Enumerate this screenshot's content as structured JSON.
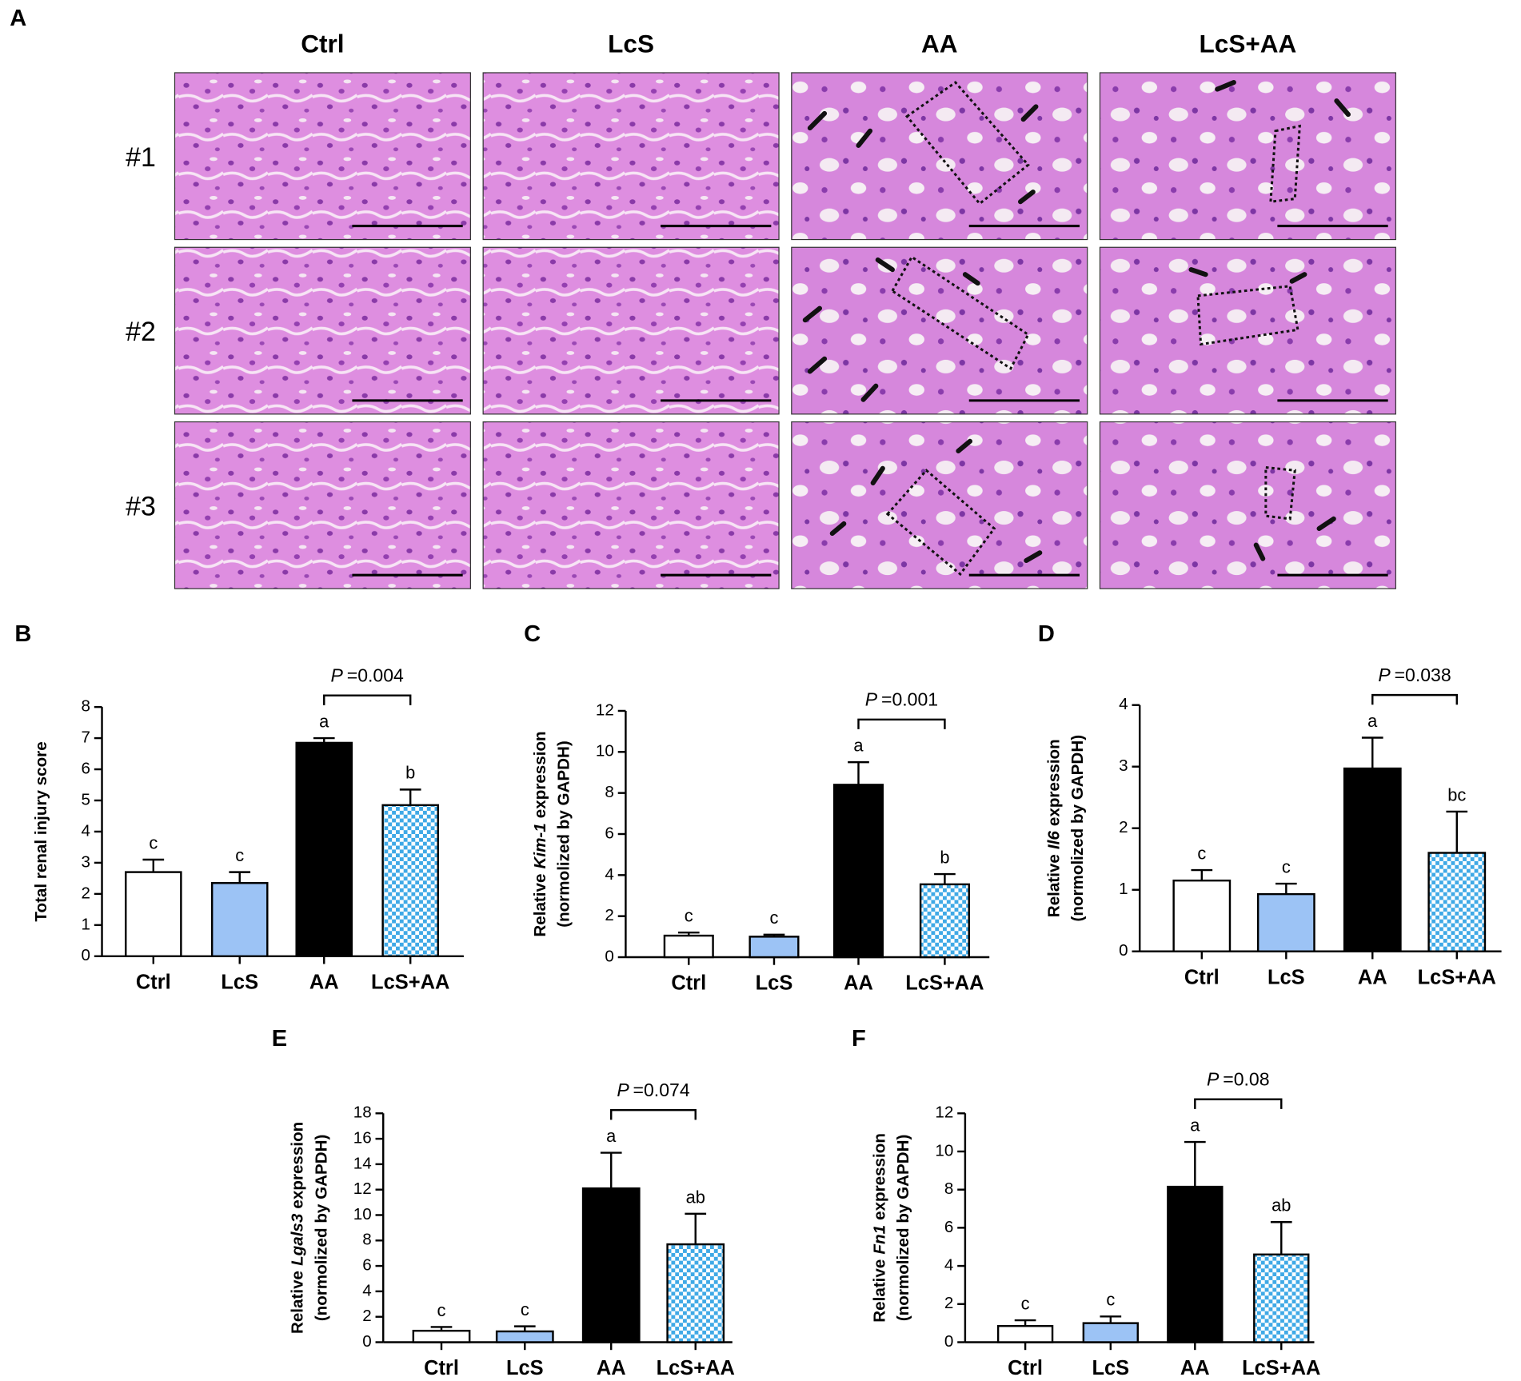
{
  "panel_a": {
    "label": "A",
    "columns": [
      "Ctrl",
      "LcS",
      "AA",
      "LcS+AA"
    ],
    "rows": [
      "#1",
      "#2",
      "#3"
    ]
  },
  "chart_data": [
    {
      "type": "bar",
      "panel": "B",
      "ylabel": [
        "Total renal injury score"
      ],
      "categories": [
        "Ctrl",
        "LcS",
        "AA",
        "LcS+AA"
      ],
      "values": [
        2.7,
        2.35,
        6.85,
        4.85
      ],
      "errors": [
        0.4,
        0.35,
        0.15,
        0.5
      ],
      "letters": [
        "c",
        "c",
        "a",
        "b"
      ],
      "p_label": {
        "symbol": "P",
        "text": "=0.004"
      },
      "colors": [
        "#ffffff",
        "#9cc3f5",
        "#000000",
        "#3fa9e6"
      ],
      "pattern": "checker",
      "pattern_index": 3,
      "ylim": [
        0,
        8
      ],
      "yticks": [
        0,
        1,
        2,
        3,
        4,
        5,
        6,
        7,
        8
      ]
    },
    {
      "type": "bar",
      "panel": "C",
      "ylabel": [
        "Relative",
        "Kim-1",
        "expression",
        "(normolized by GAPDH)"
      ],
      "ylabel_italic": 1,
      "categories": [
        "Ctrl",
        "LcS",
        "AA",
        "LcS+AA"
      ],
      "values": [
        1.05,
        1.0,
        8.4,
        3.55
      ],
      "errors": [
        0.15,
        0.1,
        1.1,
        0.5
      ],
      "letters": [
        "c",
        "c",
        "a",
        "b"
      ],
      "p_label": {
        "symbol": "P",
        "text": "=0.001"
      },
      "colors": [
        "#ffffff",
        "#9cc3f5",
        "#000000",
        "#3fa9e6"
      ],
      "pattern": "checker",
      "pattern_index": 3,
      "ylim": [
        0,
        12
      ],
      "yticks": [
        0,
        2,
        4,
        6,
        8,
        10,
        12
      ]
    },
    {
      "type": "bar",
      "panel": "D",
      "ylabel": [
        "Relative",
        "Il6",
        "expression",
        "(normolized by GAPDH)"
      ],
      "ylabel_italic": 1,
      "categories": [
        "Ctrl",
        "LcS",
        "AA",
        "LcS+AA"
      ],
      "values": [
        1.15,
        0.93,
        2.97,
        1.6
      ],
      "errors": [
        0.17,
        0.17,
        0.5,
        0.67
      ],
      "letters": [
        "c",
        "c",
        "a",
        "bc"
      ],
      "p_label": {
        "symbol": "P",
        "text": "=0.038"
      },
      "colors": [
        "#ffffff",
        "#9cc3f5",
        "#000000",
        "#3fa9e6"
      ],
      "pattern": "checker",
      "pattern_index": 3,
      "ylim": [
        0,
        4
      ],
      "yticks": [
        0,
        1,
        2,
        3,
        4
      ]
    },
    {
      "type": "bar",
      "panel": "E",
      "ylabel": [
        "Relative",
        "Lgals3",
        "expression",
        "(normolized by GAPDH)"
      ],
      "ylabel_italic": 1,
      "categories": [
        "Ctrl",
        "LcS",
        "AA",
        "LcS+AA"
      ],
      "values": [
        0.9,
        0.85,
        12.1,
        7.7
      ],
      "errors": [
        0.3,
        0.4,
        2.8,
        2.4
      ],
      "letters": [
        "c",
        "c",
        "a",
        "ab"
      ],
      "p_label": {
        "symbol": "P",
        "text": "=0.074"
      },
      "colors": [
        "#ffffff",
        "#9cc3f5",
        "#000000",
        "#3fa9e6"
      ],
      "pattern": "checker",
      "pattern_index": 3,
      "ylim": [
        0,
        18
      ],
      "yticks": [
        0,
        2,
        4,
        6,
        8,
        10,
        12,
        14,
        16,
        18
      ]
    },
    {
      "type": "bar",
      "panel": "F",
      "ylabel": [
        "Relative",
        "Fn1",
        "expression",
        "(normolized by GAPDH)"
      ],
      "ylabel_italic": 1,
      "categories": [
        "Ctrl",
        "LcS",
        "AA",
        "LcS+AA"
      ],
      "values": [
        0.85,
        1.0,
        8.15,
        4.6
      ],
      "errors": [
        0.3,
        0.35,
        2.35,
        1.7
      ],
      "letters": [
        "c",
        "c",
        "a",
        "ab"
      ],
      "p_label": {
        "symbol": "P",
        "text": "=0.08"
      },
      "colors": [
        "#ffffff",
        "#9cc3f5",
        "#000000",
        "#3fa9e6"
      ],
      "pattern": "checker",
      "pattern_index": 3,
      "ylim": [
        0,
        12
      ],
      "yticks": [
        0,
        2,
        4,
        6,
        8,
        10,
        12
      ]
    }
  ]
}
